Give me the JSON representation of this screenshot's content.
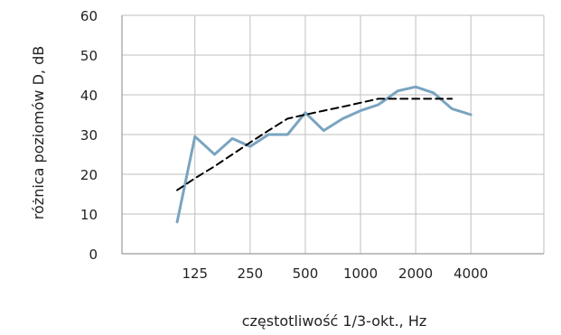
{
  "chart_data": {
    "type": "line",
    "xlabel": "częstotliwość 1/3-okt., Hz",
    "ylabel": "różnica poziomów D, dB",
    "ylim": [
      0,
      60
    ],
    "y_ticks": [
      0,
      10,
      20,
      30,
      40,
      50,
      60
    ],
    "x_tick_labels": [
      "125",
      "250",
      "500",
      "1000",
      "2000",
      "4000"
    ],
    "x_tick_values": [
      125,
      250,
      500,
      1000,
      2000,
      4000
    ],
    "xlim_hz": [
      50,
      10000
    ],
    "x_scale": "log",
    "grid": "vertical and horizontal",
    "legend": "none",
    "series": [
      {
        "style": "solid",
        "color": "#7aa4c0",
        "x": [
          100,
          125,
          160,
          200,
          250,
          315,
          400,
          500,
          630,
          800,
          1000,
          1250,
          1600,
          2000,
          2500,
          3150,
          4000
        ],
        "values": [
          8,
          29.5,
          25,
          29,
          27,
          30,
          30,
          35.5,
          31,
          34,
          36,
          37.5,
          41,
          42,
          40.5,
          36.5,
          35
        ]
      },
      {
        "style": "dashed",
        "color": "#000000",
        "x": [
          100,
          125,
          160,
          200,
          250,
          315,
          400,
          500,
          630,
          800,
          1000,
          1250,
          1600,
          2000,
          2500,
          3150
        ],
        "values": [
          16,
          19,
          22,
          25,
          28,
          31,
          34,
          35,
          36,
          37,
          38,
          39,
          39,
          39,
          39,
          39
        ]
      }
    ]
  }
}
